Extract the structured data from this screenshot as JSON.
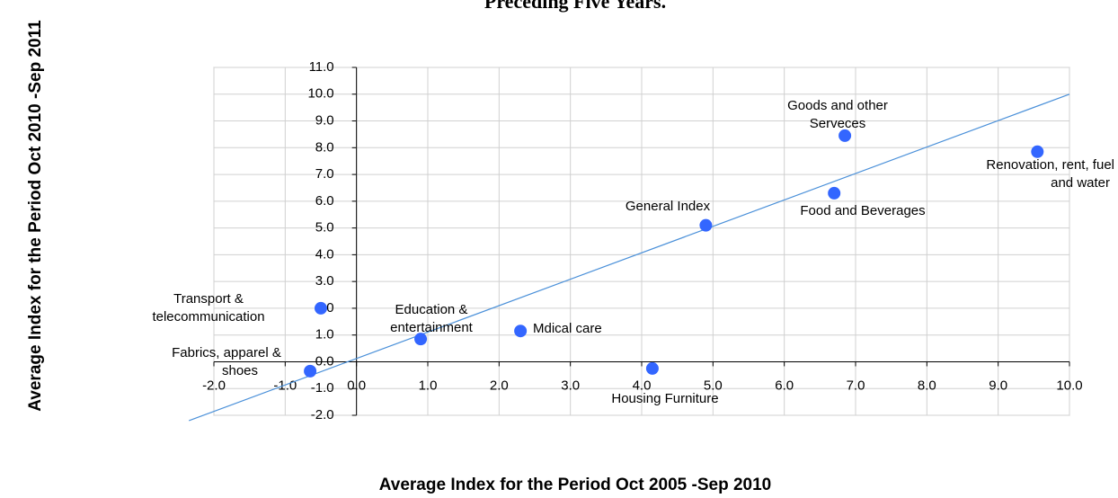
{
  "chart_data": {
    "type": "scatter",
    "title": "Preceding Five Years.",
    "x_label": "Average Index for the Period Oct 2005 -Sep 2010",
    "y_label": "Average Index for the  Period Oct 2010 -Sep 2011",
    "series": [
      {
        "color": "#3366ff",
        "x": [
          6.85,
          9.55,
          6.7,
          4.9,
          -0.5,
          0.9,
          2.3,
          4.15,
          -0.65
        ],
        "values": [
          8.45,
          7.85,
          6.3,
          5.1,
          2.0,
          0.85,
          1.15,
          -0.25,
          -0.35
        ],
        "labels": [
          [
            "Goods and other",
            "Serveces"
          ],
          [
            "Renovation, rent, fuel",
            "and water"
          ],
          [
            "Food and Beverages"
          ],
          [
            "General Index"
          ],
          [
            "Transport &",
            "telecommunication"
          ],
          [
            "Education &",
            "entertainment"
          ],
          [
            "Mdical care"
          ],
          [
            "Housing Furniture"
          ],
          [
            "Fabrics, apparel &",
            "shoes"
          ]
        ]
      }
    ],
    "trend_line": {
      "color": "#4a90d9",
      "x": [
        -2.35,
        10
      ],
      "y": [
        -2.2,
        10
      ]
    },
    "xlim": [
      -2,
      10
    ],
    "ylim": [
      -2,
      11
    ],
    "xticks": [
      {
        "value": -2,
        "label": "-2.0"
      },
      {
        "value": -1,
        "label": "-1.0"
      },
      {
        "value": 0,
        "label": "0.0"
      },
      {
        "value": 1,
        "label": "1.0"
      },
      {
        "value": 2,
        "label": "2.0"
      },
      {
        "value": 3,
        "label": "3.0"
      },
      {
        "value": 4,
        "label": "4.0"
      },
      {
        "value": 5,
        "label": "5.0"
      },
      {
        "value": 6,
        "label": "6.0"
      },
      {
        "value": 7,
        "label": "7.0"
      },
      {
        "value": 8,
        "label": "8.0"
      },
      {
        "value": 9,
        "label": "9.0"
      },
      {
        "value": 10,
        "label": "10.0"
      }
    ],
    "yticks": [
      {
        "value": -2,
        "label": "-2.0"
      },
      {
        "value": -1,
        "label": "-1.0"
      },
      {
        "value": 0,
        "label": "0.0"
      },
      {
        "value": 1,
        "label": "1.0"
      },
      {
        "value": 2,
        "label": "2.0"
      },
      {
        "value": 3,
        "label": "3.0"
      },
      {
        "value": 4,
        "label": "4.0"
      },
      {
        "value": 5,
        "label": "5.0"
      },
      {
        "value": 6,
        "label": "6.0"
      },
      {
        "value": 7,
        "label": "7.0"
      },
      {
        "value": 8,
        "label": "8.0"
      },
      {
        "value": 9,
        "label": "9.0"
      },
      {
        "value": 10,
        "label": "10.0"
      },
      {
        "value": 11,
        "label": "11.0"
      }
    ],
    "grid": true
  }
}
